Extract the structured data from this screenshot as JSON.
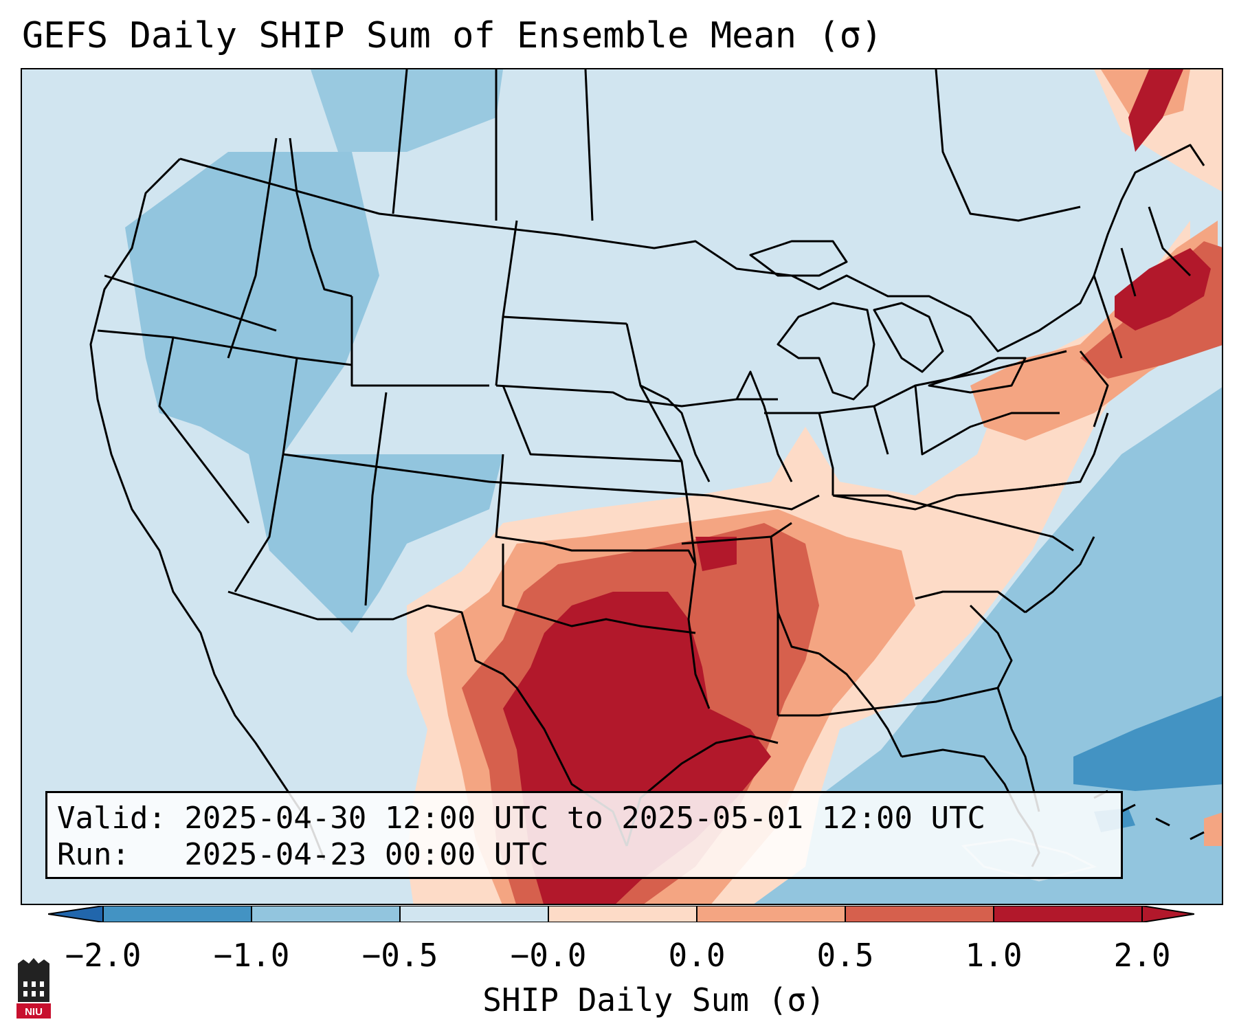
{
  "title": "GEFS Daily SHIP Sum of Ensemble Mean (σ)",
  "info": {
    "valid_line": "Valid: 2025-04-30 12:00 UTC to 2025-05-01 12:00 UTC",
    "run_line": "Run:   2025-04-23 00:00 UTC"
  },
  "colorbar": {
    "label": "SHIP Daily Sum (σ)",
    "ticks": [
      "−2.0",
      "−1.0",
      "−0.5",
      "−0.0",
      "0.0",
      "0.5",
      "1.0",
      "2.0"
    ],
    "bin_colors": [
      "#4393c3",
      "#92c5de",
      "#d1e5f0",
      "#fddbc7",
      "#f4a582",
      "#d6604d",
      "#b2182b"
    ],
    "extend_low_color": "#2166ac",
    "extend_high_color": "#b2182b"
  },
  "colors": {
    "background_field": "#d1e5f0",
    "state_lines": "#000000"
  },
  "logo": {
    "text": "NIU",
    "icon": "niu-logo-icon"
  }
}
